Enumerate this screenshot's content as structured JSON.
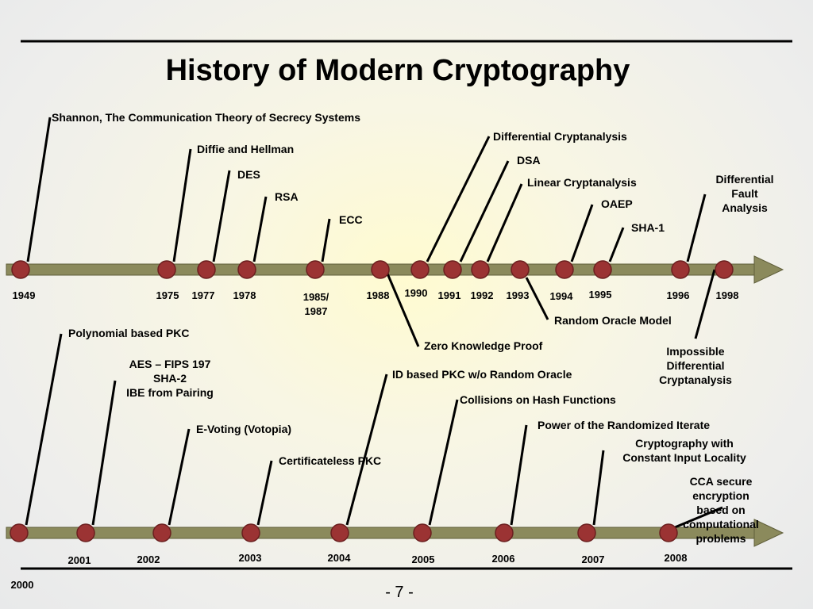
{
  "title": "History of Modern Cryptography",
  "timelines": [
    {
      "years": [
        "1949",
        "1975",
        "1977",
        "1978",
        "1985/\n1987",
        "1988",
        "1990",
        "1991",
        "1992",
        "1993",
        "1994",
        "1995",
        "1996",
        "1998"
      ],
      "events": [
        "Shannon, The Communication Theory of Secrecy Systems",
        "Diffie and Hellman",
        "DES",
        "RSA",
        "ECC",
        "Differential Cryptanalysis",
        "DSA",
        "Linear Cryptanalysis",
        "OAEP",
        "SHA-1",
        "Differential\nFault\nAnalysis",
        "Random Oracle Model",
        "Zero Knowledge Proof",
        "Impossible Differential\nCryptanalysis"
      ]
    },
    {
      "years": [
        "2000",
        "2001",
        "2002",
        "2003",
        "2004",
        "2005",
        "2006",
        "2007",
        "2008"
      ],
      "events": [
        "Polynomial based PKC",
        "AES – FIPS 197\nSHA-2\nIBE from Pairing",
        "E-Voting (Votopia)",
        "Certificateless PKC",
        "ID based PKC w/o Random Oracle",
        "Collisions on Hash Functions",
        "Power of the Randomized Iterate",
        "Cryptography with\nConstant Input Locality",
        "CCA secure encryption\nbased on computational\nproblems"
      ]
    }
  ],
  "page_number": "- 7 -"
}
